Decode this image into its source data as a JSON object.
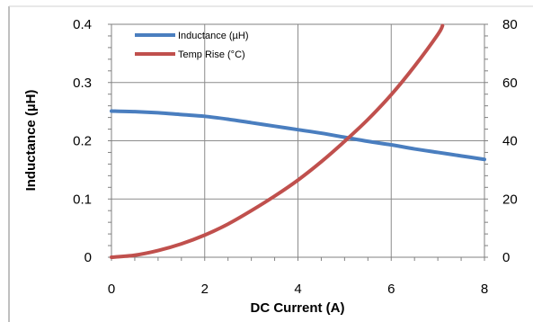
{
  "chart_data": {
    "type": "line",
    "xlabel": "DC Current (A)",
    "ylabel": "Inductance (µH)",
    "y2label": "",
    "xlim": [
      0,
      8
    ],
    "ylim": [
      0,
      0.4
    ],
    "y2lim": [
      0,
      80
    ],
    "x_ticks": [
      0,
      2,
      4,
      6,
      8
    ],
    "y_ticks": [
      0,
      0.1,
      0.2,
      0.3,
      0.4
    ],
    "y2_ticks": [
      0,
      20,
      40,
      60,
      80
    ],
    "x_tick_labels": [
      "0",
      "2",
      "4",
      "6",
      "8"
    ],
    "y_tick_labels": [
      "0",
      "0.1",
      "0.2",
      "0.3",
      "0.4"
    ],
    "y2_tick_labels": [
      "0",
      "20",
      "40",
      "60",
      "80"
    ],
    "grid": true,
    "legend_position": "top-left",
    "series": [
      {
        "name": "Inductance (µH)",
        "axis": "left",
        "color": "#4a7ebf",
        "x": [
          0,
          0.5,
          1,
          1.5,
          2,
          2.5,
          3,
          3.5,
          4,
          4.5,
          5,
          5.5,
          6,
          6.5,
          7,
          7.5,
          8
        ],
        "y": [
          0.251,
          0.25,
          0.248,
          0.245,
          0.242,
          0.237,
          0.231,
          0.225,
          0.219,
          0.213,
          0.206,
          0.199,
          0.193,
          0.186,
          0.18,
          0.174,
          0.168
        ]
      },
      {
        "name": "Temp Rise (°C)",
        "axis": "right",
        "color": "#c0504d",
        "x": [
          0,
          0.5,
          1,
          1.5,
          2,
          2.5,
          3,
          3.5,
          4,
          4.5,
          5,
          5.5,
          6,
          6.5,
          7,
          7.1
        ],
        "y": [
          0,
          0.7,
          2.3,
          4.6,
          7.6,
          11.4,
          16.0,
          21.0,
          26.5,
          32.8,
          39.8,
          47.3,
          55.8,
          65.6,
          76.5,
          79.5
        ]
      }
    ]
  }
}
